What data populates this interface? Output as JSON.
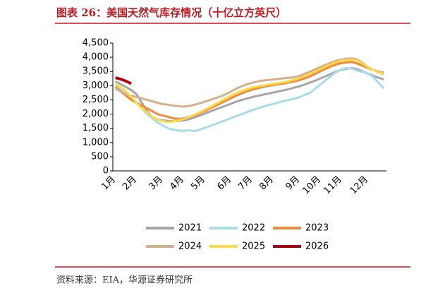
{
  "chart_data": {
    "type": "line",
    "title": "图表 26：美国天然气库存情况（十亿立方英尺）",
    "source": "资料来源：EIA，华源证券研究所",
    "categories": [
      "1月",
      null,
      null,
      null,
      "2月",
      null,
      null,
      null,
      null,
      "3月",
      null,
      null,
      null,
      "4月",
      null,
      null,
      null,
      "5月",
      null,
      null,
      null,
      null,
      "6月",
      null,
      null,
      null,
      "7月",
      null,
      null,
      null,
      "8月",
      null,
      null,
      null,
      null,
      "9月",
      null,
      null,
      null,
      "10月",
      null,
      null,
      null,
      "11月",
      null,
      null,
      null,
      null,
      "12月",
      null,
      null,
      null
    ],
    "ylim": [
      0,
      4500
    ],
    "yticks": [
      0,
      500,
      {
        "value": 1000,
        "label": "1,000"
      },
      {
        "value": 1500,
        "label": "1,500"
      },
      {
        "value": 2000,
        "label": "2,000"
      },
      {
        "value": 2500,
        "label": "2,500"
      },
      {
        "value": 3000,
        "label": "3,000"
      },
      {
        "value": 3500,
        "label": "3,500"
      },
      {
        "value": 4000,
        "label": "4,000"
      },
      {
        "value": 4500,
        "label": "4,500"
      }
    ],
    "series": [
      {
        "name": "2021",
        "color": "#a6a6a6",
        "values": [
          3150,
          3050,
          2950,
          2850,
          2700,
          2400,
          2100,
          1900,
          1800,
          1780,
          1760,
          1750,
          1760,
          1780,
          1820,
          1880,
          1950,
          2020,
          2090,
          2160,
          2230,
          2300,
          2370,
          2440,
          2500,
          2550,
          2600,
          2640,
          2680,
          2720,
          2760,
          2800,
          2840,
          2880,
          2930,
          2980,
          3040,
          3110,
          3180,
          3260,
          3340,
          3420,
          3500,
          3560,
          3600,
          3620,
          3580,
          3500,
          3420,
          3350,
          3280,
          3220
        ]
      },
      {
        "name": "2022",
        "color": "#a9dcea",
        "values": [
          3000,
          2900,
          2750,
          2600,
          2400,
          2200,
          2000,
          1850,
          1700,
          1600,
          1500,
          1450,
          1420,
          1410,
          1430,
          1400,
          1450,
          1520,
          1580,
          1650,
          1720,
          1790,
          1860,
          1930,
          2000,
          2070,
          2140,
          2200,
          2260,
          2310,
          2360,
          2410,
          2460,
          2500,
          2540,
          2600,
          2680,
          2750,
          2900,
          3050,
          3200,
          3350,
          3480,
          3580,
          3620,
          3600,
          3520,
          3480,
          3420,
          3300,
          3100,
          2900
        ]
      },
      {
        "name": "2023",
        "color": "#f08a3c",
        "values": [
          2950,
          2800,
          2650,
          2500,
          2400,
          2300,
          2200,
          2100,
          2000,
          1950,
          1900,
          1850,
          1830,
          1850,
          1900,
          1960,
          2030,
          2110,
          2200,
          2290,
          2380,
          2470,
          2560,
          2650,
          2730,
          2800,
          2860,
          2910,
          2950,
          2990,
          3020,
          3050,
          3080,
          3110,
          3150,
          3200,
          3260,
          3330,
          3420,
          3510,
          3600,
          3680,
          3750,
          3800,
          3820,
          3830,
          3780,
          3700,
          3620,
          3550,
          3490,
          3450
        ]
      },
      {
        "name": "2024",
        "color": "#d3b08c",
        "values": [
          2900,
          2800,
          2700,
          2650,
          2600,
          2550,
          2500,
          2450,
          2400,
          2350,
          2330,
          2300,
          2280,
          2260,
          2290,
          2330,
          2380,
          2440,
          2500,
          2560,
          2620,
          2700,
          2800,
          2900,
          2980,
          3050,
          3100,
          3150,
          3180,
          3200,
          3220,
          3240,
          3260,
          3280,
          3300,
          3350,
          3420,
          3500,
          3580,
          3660,
          3740,
          3820,
          3880,
          3920,
          3950,
          3960,
          3920,
          3800,
          3650,
          3550,
          3500,
          3460
        ]
      },
      {
        "name": "2025",
        "color": "#ffd94a",
        "values": [
          3050,
          2950,
          2800,
          2600,
          2400,
          2200,
          2050,
          1900,
          1800,
          1750,
          1720,
          1740,
          1780,
          1830,
          1900,
          1980,
          2060,
          2150,
          2250,
          2350,
          2450,
          2550,
          2650,
          2740,
          2820,
          2880,
          2930,
          2970,
          3000,
          3030,
          3060,
          3090,
          3120,
          3160,
          3210,
          3270,
          3340,
          3420,
          3500,
          3590,
          3680,
          3760,
          3830,
          3880,
          3900,
          3910,
          3880,
          3780,
          3650,
          3550,
          3460,
          3400
        ]
      },
      {
        "name": "2026",
        "color": "#b3000f",
        "values": [
          3280,
          3230,
          3160,
          3070,
          null,
          null,
          null,
          null,
          null,
          null,
          null,
          null,
          null,
          null,
          null,
          null,
          null,
          null,
          null,
          null,
          null,
          null,
          null,
          null,
          null,
          null,
          null,
          null,
          null,
          null,
          null,
          null,
          null,
          null,
          null,
          null,
          null,
          null,
          null,
          null,
          null,
          null,
          null,
          null,
          null,
          null,
          null,
          null,
          null,
          null,
          null,
          null
        ]
      }
    ]
  }
}
